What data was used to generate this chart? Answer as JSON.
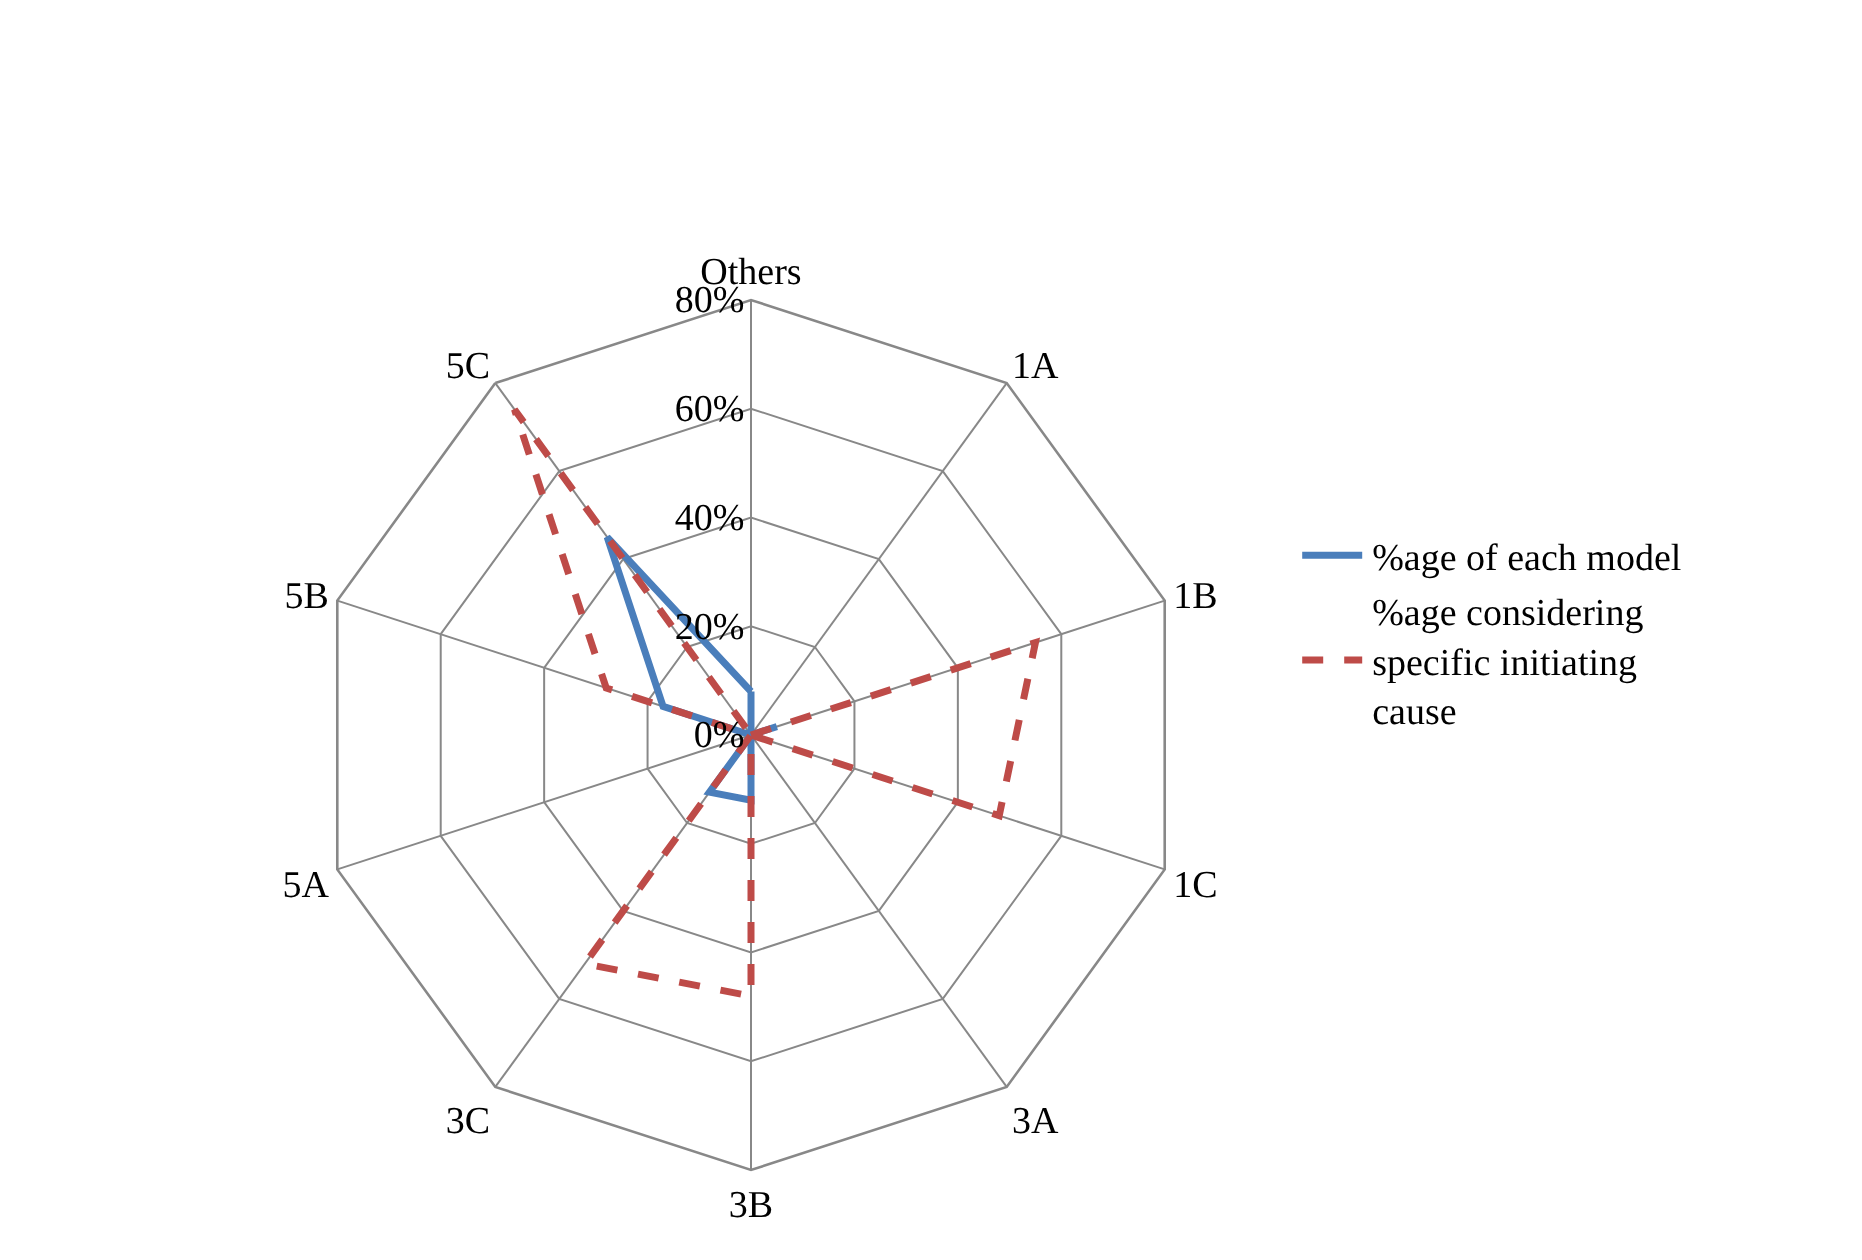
{
  "chart_data": {
    "type": "radar",
    "categories": [
      "Others",
      "1A",
      "1B",
      "1C",
      "3A",
      "3B",
      "3C",
      "5A",
      "5B",
      "5C"
    ],
    "series": [
      {
        "name": "%age of each model",
        "color": "#4a7ebb",
        "line_style": "solid",
        "values": [
          8,
          0,
          5,
          0,
          0,
          12,
          13,
          0,
          17,
          45
        ]
      },
      {
        "name": "%age considering specific initiating cause",
        "color": "#be4b48",
        "line_style": "dashed",
        "values": [
          0,
          0,
          55,
          48,
          0,
          48,
          52,
          0,
          28,
          74
        ]
      }
    ],
    "ylim": [
      0,
      80
    ],
    "yticks": [
      {
        "value": 0,
        "label": "0%"
      },
      {
        "value": 20,
        "label": "20%"
      },
      {
        "value": 40,
        "label": "40%"
      },
      {
        "value": 60,
        "label": "60%"
      },
      {
        "value": 80,
        "label": "80%"
      }
    ],
    "grid": true,
    "legend": "right",
    "marker": "none"
  }
}
